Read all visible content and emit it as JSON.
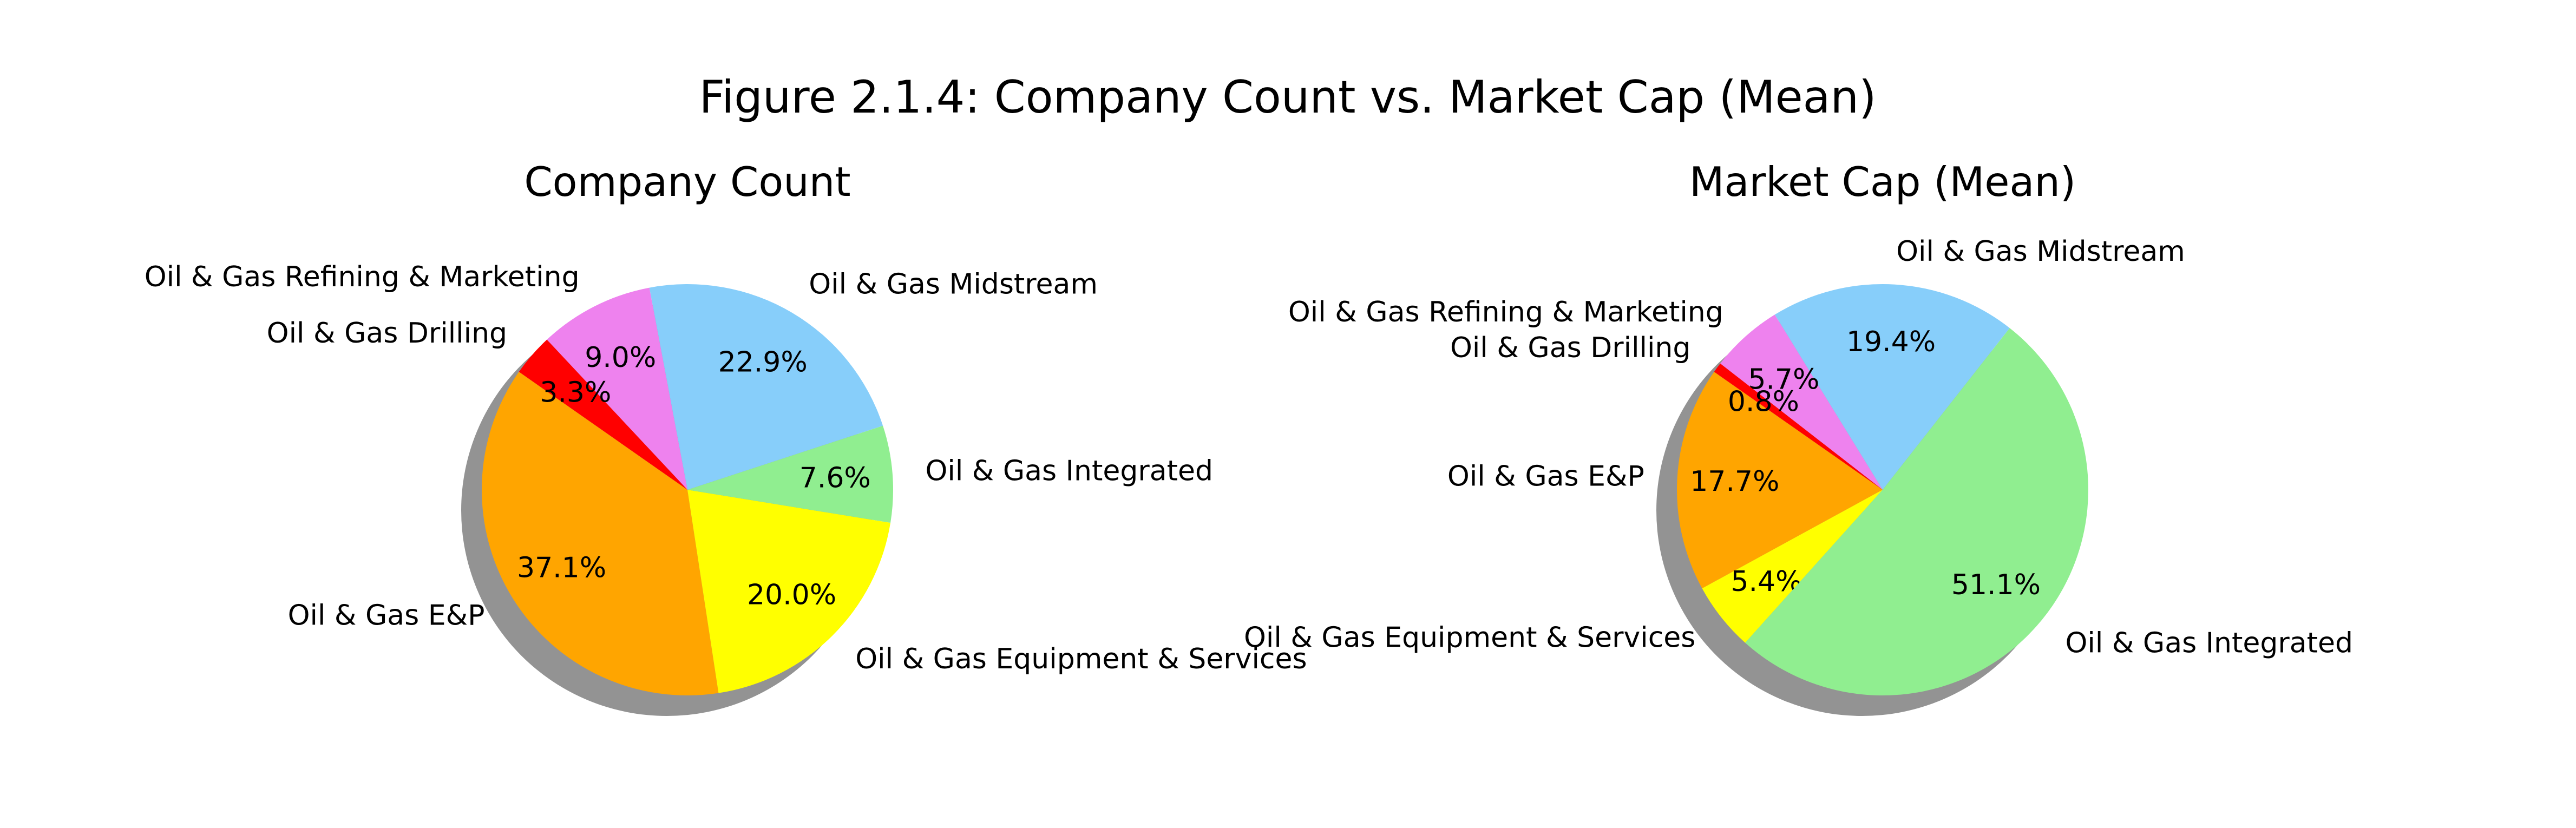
{
  "figure": {
    "title": "Figure 2.1.4: Company Count vs. Market Cap (Mean)"
  },
  "chart_data": [
    {
      "type": "pie",
      "title": "Company Count",
      "shadow": true,
      "start": "counter-clockwise from top-left",
      "slices": [
        {
          "label": "Oil & Gas E&P",
          "value": 37.1,
          "pct_label": "37.1%",
          "color": "#ffa500"
        },
        {
          "label": "Oil & Gas Equipment & Services",
          "value": 20.0,
          "pct_label": "20.0%",
          "color": "#ffff00"
        },
        {
          "label": "Oil & Gas Integrated",
          "value": 7.6,
          "pct_label": "7.6%",
          "color": "#90ee90"
        },
        {
          "label": "Oil & Gas Midstream",
          "value": 22.9,
          "pct_label": "22.9%",
          "color": "#87cefa"
        },
        {
          "label": "Oil & Gas Refining & Marketing",
          "value": 9.0,
          "pct_label": "9.0%",
          "color": "#ee82ee"
        },
        {
          "label": "Oil & Gas Drilling",
          "value": 3.3,
          "pct_label": "3.3%",
          "color": "#ff0000"
        }
      ]
    },
    {
      "type": "pie",
      "title": "Market Cap (Mean)",
      "shadow": true,
      "start": "counter-clockwise from top-left",
      "slices": [
        {
          "label": "Oil & Gas E&P",
          "value": 17.7,
          "pct_label": "17.7%",
          "color": "#ffa500"
        },
        {
          "label": "Oil & Gas Equipment & Services",
          "value": 5.4,
          "pct_label": "5.4%",
          "color": "#ffff00"
        },
        {
          "label": "Oil & Gas Integrated",
          "value": 51.1,
          "pct_label": "51.1%",
          "color": "#90ee90"
        },
        {
          "label": "Oil & Gas Midstream",
          "value": 19.4,
          "pct_label": "19.4%",
          "color": "#87cefa"
        },
        {
          "label": "Oil & Gas Refining & Marketing",
          "value": 5.7,
          "pct_label": "5.7%",
          "color": "#ee82ee"
        },
        {
          "label": "Oil & Gas Drilling",
          "value": 0.8,
          "pct_label": "0.8%",
          "color": "#ff0000"
        }
      ]
    }
  ]
}
